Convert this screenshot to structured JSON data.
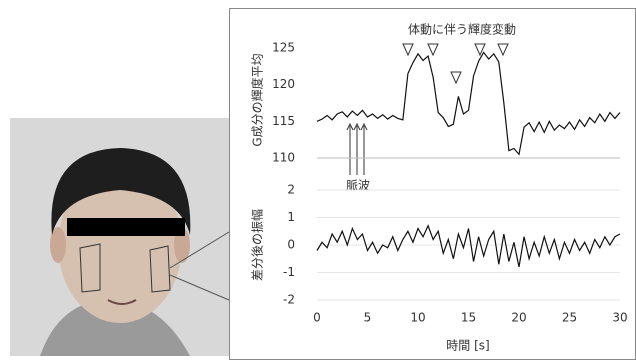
{
  "chart_data": [
    {
      "type": "line",
      "title": "体動に伴う輝度変動",
      "ylabel": "G成分の輝度平均",
      "annotation": "脈波",
      "color": "#111111",
      "x": [
        0,
        0.5,
        1,
        1.5,
        2,
        2.5,
        3,
        3.5,
        4,
        4.5,
        5,
        5.5,
        6,
        6.5,
        7,
        7.5,
        8,
        8.5,
        9,
        9.5,
        10,
        10.5,
        11,
        11.5,
        12,
        12.5,
        13,
        13.5,
        14,
        14.5,
        15,
        15.5,
        16,
        16.5,
        17,
        17.5,
        18,
        18.5,
        19,
        19.5,
        20,
        20.5,
        21,
        21.5,
        22,
        22.5,
        23,
        23.5,
        24,
        24.5,
        25,
        25.5,
        26,
        26.5,
        27,
        27.5,
        28,
        28.5,
        29,
        29.5,
        30
      ],
      "values": [
        115,
        115.3,
        115.8,
        115.2,
        116,
        116.3,
        115.6,
        116.4,
        115.8,
        116.5,
        115.6,
        116,
        115.4,
        115.9,
        115.3,
        115.8,
        115.4,
        115.2,
        121.5,
        123,
        124.2,
        123.3,
        123.9,
        121,
        116.2,
        115.5,
        114.3,
        114.6,
        118.4,
        116,
        116.5,
        121.2,
        123.2,
        124.4,
        123.5,
        124.2,
        123.1,
        117.5,
        111,
        111.3,
        110.5,
        114.2,
        114.8,
        113.6,
        114.9,
        113.5,
        115,
        113.8,
        114.5,
        114,
        114.9,
        113.9,
        115.2,
        114.3,
        115.5,
        114.8,
        116,
        115,
        116.2,
        115.4,
        116.2
      ],
      "xlim": [
        0,
        30
      ],
      "ylim": [
        110,
        125
      ],
      "yticks": [
        110,
        115,
        120,
        125
      ]
    },
    {
      "type": "line",
      "ylabel": "差分後の振幅",
      "xlabel": "時間 [s]",
      "color": "#111111",
      "x": [
        0,
        0.5,
        1,
        1.5,
        2,
        2.5,
        3,
        3.5,
        4,
        4.5,
        5,
        5.5,
        6,
        6.5,
        7,
        7.5,
        8,
        8.5,
        9,
        9.5,
        10,
        10.5,
        11,
        11.5,
        12,
        12.5,
        13,
        13.5,
        14,
        14.5,
        15,
        15.5,
        16,
        16.5,
        17,
        17.5,
        18,
        18.5,
        19,
        19.5,
        20,
        20.5,
        21,
        21.5,
        22,
        22.5,
        23,
        23.5,
        24,
        24.5,
        25,
        25.5,
        26,
        26.5,
        27,
        27.5,
        28,
        28.5,
        29,
        29.5,
        30
      ],
      "values": [
        -0.2,
        0.1,
        -0.1,
        0.4,
        0.1,
        0.5,
        0,
        0.6,
        0.2,
        0.4,
        -0.2,
        0.1,
        -0.3,
        0,
        -0.1,
        0.3,
        -0.2,
        0.2,
        0.5,
        0.1,
        0.6,
        0.3,
        0.7,
        0.2,
        0.5,
        -0.3,
        0.2,
        -0.5,
        0.4,
        -0.1,
        0.6,
        -0.6,
        0.3,
        -0.4,
        0.2,
        0.5,
        -0.7,
        0.4,
        -0.6,
        0.1,
        -0.8,
        0.3,
        -0.5,
        0.1,
        -0.4,
        0.3,
        -0.3,
        0.2,
        -0.5,
        0.1,
        -0.3,
        0.2,
        -0.2,
        0.1,
        -0.3,
        0.2,
        -0.1,
        0.3,
        0,
        0.3,
        0.4
      ],
      "xlim": [
        0,
        30
      ],
      "xticks": [
        0,
        5,
        10,
        15,
        20,
        25,
        30
      ],
      "ylim": [
        -2,
        2
      ],
      "yticks": [
        -2,
        -1,
        0,
        1,
        2
      ]
    }
  ]
}
